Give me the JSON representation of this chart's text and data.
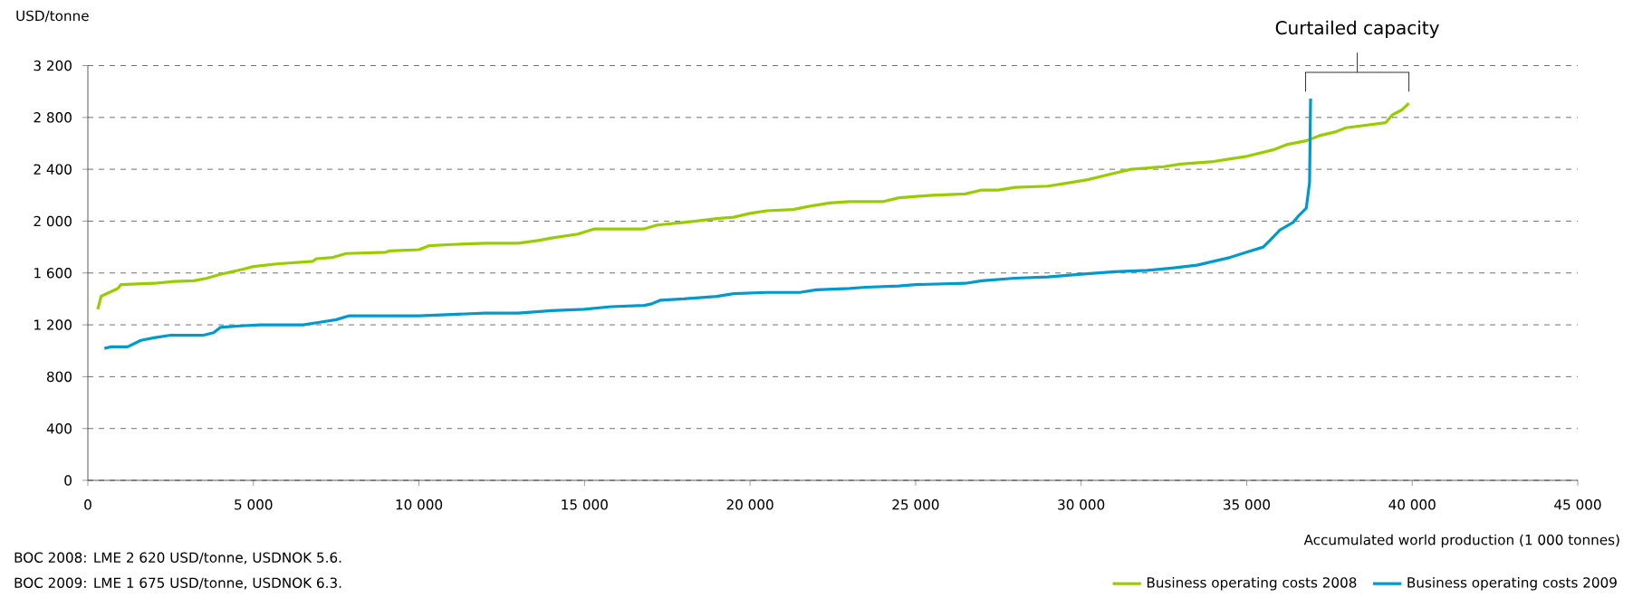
{
  "chart_data": {
    "type": "line",
    "ylabel": "USD/tonne",
    "xlabel": "Accumulated world production (1 000 tonnes)",
    "annotations": [
      "Curtailed capacity",
      "BOC 2008: LME 2 620 USD/tonne, USDNOK 5.6.",
      "BOC 2009: LME 1 675 USD/tonne, USDNOK 6.3."
    ],
    "series": [
      {
        "name": "Business operating costs 2008",
        "color": "#99cc00",
        "x": [
          300,
          400,
          900,
          1000,
          2000,
          2600,
          3200,
          3600,
          4000,
          4700,
          5000,
          5700,
          6800,
          6900,
          7400,
          7800,
          9000,
          9100,
          10000,
          10300,
          11000,
          12000,
          13000,
          13600,
          14000,
          14800,
          15300,
          16800,
          17200,
          18000,
          19000,
          19500,
          20000,
          20500,
          21300,
          21700,
          22400,
          23000,
          24000,
          24500,
          25500,
          26500,
          27000,
          27500,
          28000,
          29000,
          29500,
          30200,
          31000,
          31500,
          32500,
          33000,
          34000,
          34500,
          35000,
          35800,
          36200,
          36800,
          37200,
          37700,
          38000,
          38600,
          39200,
          39400,
          39700,
          39900
        ],
        "values": [
          1320,
          1420,
          1480,
          1510,
          1520,
          1535,
          1540,
          1560,
          1590,
          1630,
          1650,
          1670,
          1690,
          1710,
          1720,
          1750,
          1760,
          1770,
          1780,
          1810,
          1820,
          1830,
          1830,
          1850,
          1870,
          1900,
          1940,
          1940,
          1970,
          1990,
          2020,
          2030,
          2060,
          2080,
          2090,
          2110,
          2140,
          2150,
          2150,
          2180,
          2200,
          2210,
          2240,
          2240,
          2260,
          2270,
          2290,
          2320,
          2370,
          2400,
          2420,
          2440,
          2460,
          2480,
          2500,
          2550,
          2590,
          2620,
          2660,
          2690,
          2720,
          2740,
          2760,
          2820,
          2860,
          2910
        ]
      },
      {
        "name": "Business operating costs 2009",
        "color": "#0099cc",
        "x": [
          500,
          700,
          1200,
          1600,
          2000,
          2500,
          3500,
          3800,
          4000,
          4500,
          5200,
          6500,
          7000,
          7500,
          7900,
          10000,
          11000,
          12000,
          13000,
          14000,
          15000,
          15800,
          16800,
          17000,
          17300,
          18000,
          19000,
          19500,
          20500,
          21500,
          22000,
          23000,
          23500,
          24500,
          25000,
          26500,
          27000,
          28000,
          29000,
          30000,
          31000,
          32000,
          32800,
          33500,
          34000,
          34500,
          35000,
          35500,
          35700,
          36000,
          36400,
          36600,
          36800,
          36900,
          36930
        ],
        "values": [
          1018,
          1030,
          1030,
          1080,
          1100,
          1120,
          1120,
          1140,
          1180,
          1190,
          1200,
          1200,
          1220,
          1240,
          1270,
          1270,
          1280,
          1290,
          1290,
          1310,
          1320,
          1340,
          1350,
          1360,
          1390,
          1400,
          1420,
          1440,
          1450,
          1450,
          1470,
          1480,
          1490,
          1500,
          1510,
          1520,
          1540,
          1560,
          1570,
          1590,
          1610,
          1620,
          1640,
          1660,
          1690,
          1720,
          1760,
          1800,
          1850,
          1930,
          1990,
          2050,
          2100,
          2300,
          2945
        ]
      }
    ],
    "xlim": [
      0,
      45000
    ],
    "xticks": [
      0,
      {
        "value": 5000,
        "label": "5 000"
      },
      {
        "value": 10000,
        "label": "10 000"
      },
      {
        "value": 15000,
        "label": "15 000"
      },
      {
        "value": 20000,
        "label": "20 000"
      },
      {
        "value": 25000,
        "label": "25 000"
      },
      {
        "value": 30000,
        "label": "30 000"
      },
      {
        "value": 35000,
        "label": "35 000"
      },
      {
        "value": 40000,
        "label": "40 000"
      },
      {
        "value": 45000,
        "label": "45 000"
      }
    ],
    "ylim": [
      0,
      3200
    ],
    "yticks": [
      0,
      400,
      800,
      {
        "value": 1200,
        "label": "1 200"
      },
      {
        "value": 1600,
        "label": "1 600"
      },
      {
        "value": 2000,
        "label": "2 000"
      },
      {
        "value": 2400,
        "label": "2 400"
      },
      {
        "value": 2800,
        "label": "2 800"
      },
      {
        "value": 3200,
        "label": "3 200"
      }
    ],
    "grid": "y",
    "legend": "bottom right",
    "marker": "none",
    "line_style": "solid"
  }
}
